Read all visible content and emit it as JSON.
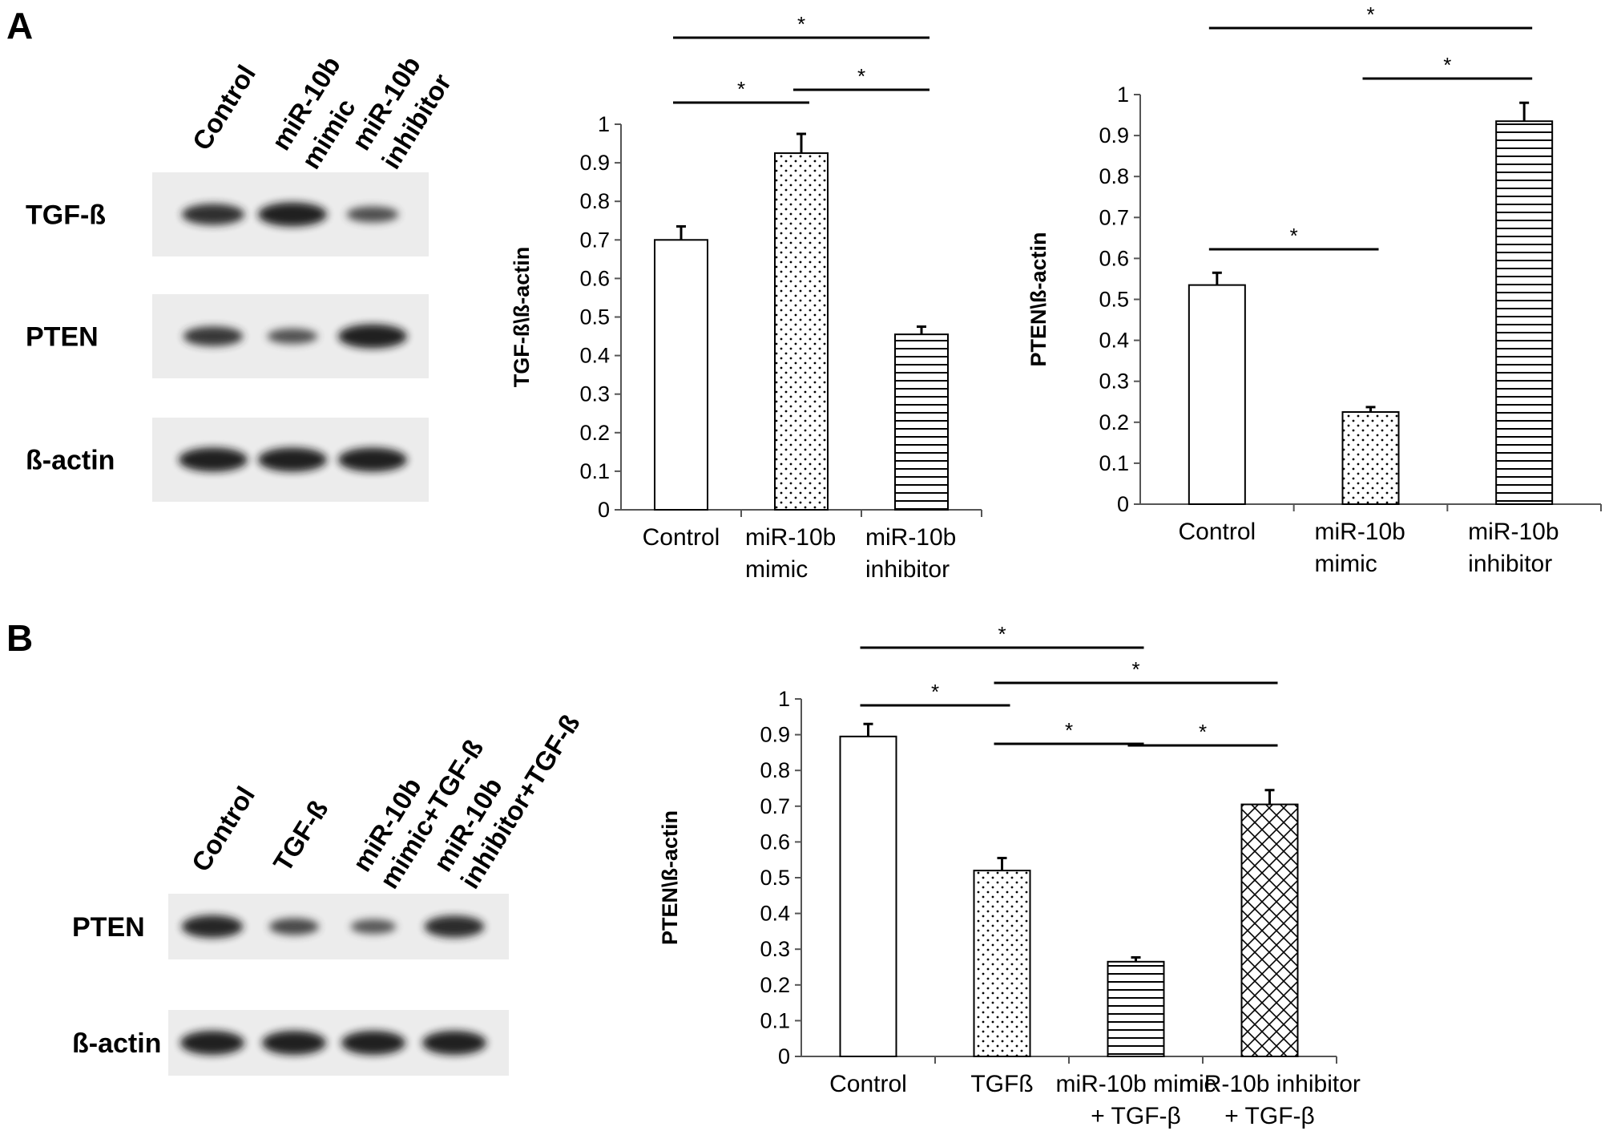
{
  "panels": {
    "a": "A",
    "b": "B"
  },
  "blot_a": {
    "lanes": [
      [
        "Control"
      ],
      [
        "miR-10b",
        "mimic"
      ],
      [
        "miR-10b",
        "inhibitor"
      ]
    ],
    "rows": [
      {
        "label": "TGF-ß",
        "bands": [
          0.8,
          1.0,
          0.45
        ]
      },
      {
        "label": "PTEN",
        "bands": [
          0.7,
          0.4,
          1.0
        ]
      },
      {
        "label": "ß-actin",
        "bands": [
          1.0,
          1.0,
          1.0
        ]
      }
    ]
  },
  "blot_b": {
    "lanes": [
      [
        "Control"
      ],
      [
        "TGF-ß"
      ],
      [
        "miR-10b",
        "mimic+TGF-ß"
      ],
      [
        "miR-10b",
        "inhibitor+TGF-ß"
      ]
    ],
    "rows": [
      {
        "label": "PTEN",
        "bands": [
          0.9,
          0.5,
          0.35,
          0.85
        ]
      },
      {
        "label": "ß-actin",
        "bands": [
          1.0,
          1.0,
          1.0,
          1.0
        ]
      }
    ]
  },
  "chart_data": [
    {
      "type": "bar",
      "panel": "A",
      "categories": [
        [
          "Control"
        ],
        [
          "miR-10b",
          "mimic"
        ],
        [
          "miR-10b",
          "inhibitor"
        ]
      ],
      "values": [
        0.7,
        0.925,
        0.455
      ],
      "errors": [
        0.035,
        0.05,
        0.02
      ],
      "patterns": [
        "none",
        "dots",
        "hlines"
      ],
      "ylabel": "TGF-ß\\ß-actin",
      "ylim": [
        0,
        1
      ],
      "yticks": [
        "0",
        "0.1",
        "0.2",
        "0.3",
        "0.4",
        "0.5",
        "0.6",
        "0.7",
        "0.8",
        "0.9",
        "1"
      ],
      "significance": [
        {
          "from": 0,
          "to": 1,
          "label": "*"
        },
        {
          "from": 1,
          "to": 2,
          "label": "*"
        },
        {
          "from": 0,
          "to": 2,
          "label": "*"
        }
      ]
    },
    {
      "type": "bar",
      "panel": "A",
      "categories": [
        [
          "Control"
        ],
        [
          "miR-10b",
          "mimic"
        ],
        [
          "miR-10b",
          "inhibitor"
        ]
      ],
      "values": [
        0.535,
        0.225,
        0.935
      ],
      "errors": [
        0.03,
        0.012,
        0.045
      ],
      "patterns": [
        "none",
        "dots",
        "hlines"
      ],
      "ylabel": "PTEN\\ß-actin",
      "ylim": [
        0,
        1
      ],
      "yticks": [
        "0",
        "0.1",
        "0.2",
        "0.3",
        "0.4",
        "0.5",
        "0.6",
        "0.7",
        "0.8",
        "0.9",
        "1"
      ],
      "significance": [
        {
          "from": 0,
          "to": 1,
          "label": "*"
        },
        {
          "from": 1,
          "to": 2,
          "label": "*"
        },
        {
          "from": 0,
          "to": 2,
          "label": "*"
        }
      ]
    },
    {
      "type": "bar",
      "panel": "B",
      "categories": [
        [
          "Control"
        ],
        [
          "TGFß"
        ],
        [
          "miR-10b mimic",
          "+ TGF-β"
        ],
        [
          "miR-10b inhibitor",
          "+ TGF-β"
        ]
      ],
      "values": [
        0.895,
        0.52,
        0.265,
        0.705
      ],
      "errors": [
        0.035,
        0.035,
        0.012,
        0.04
      ],
      "patterns": [
        "none",
        "dots",
        "hlines",
        "cross"
      ],
      "ylabel": "PTEN\\ß-actin",
      "ylim": [
        0,
        1
      ],
      "yticks": [
        "0",
        "0.1",
        "0.2",
        "0.3",
        "0.4",
        "0.5",
        "0.6",
        "0.7",
        "0.8",
        "0.9",
        "1"
      ],
      "significance": [
        {
          "from": 0,
          "to": 1,
          "label": "*"
        },
        {
          "from": 1,
          "to": 2,
          "label": "*"
        },
        {
          "from": 2,
          "to": 3,
          "label": "*"
        },
        {
          "from": 0,
          "to": 2,
          "label": "*"
        },
        {
          "from": 1,
          "to": 3,
          "label": "*"
        }
      ]
    }
  ]
}
